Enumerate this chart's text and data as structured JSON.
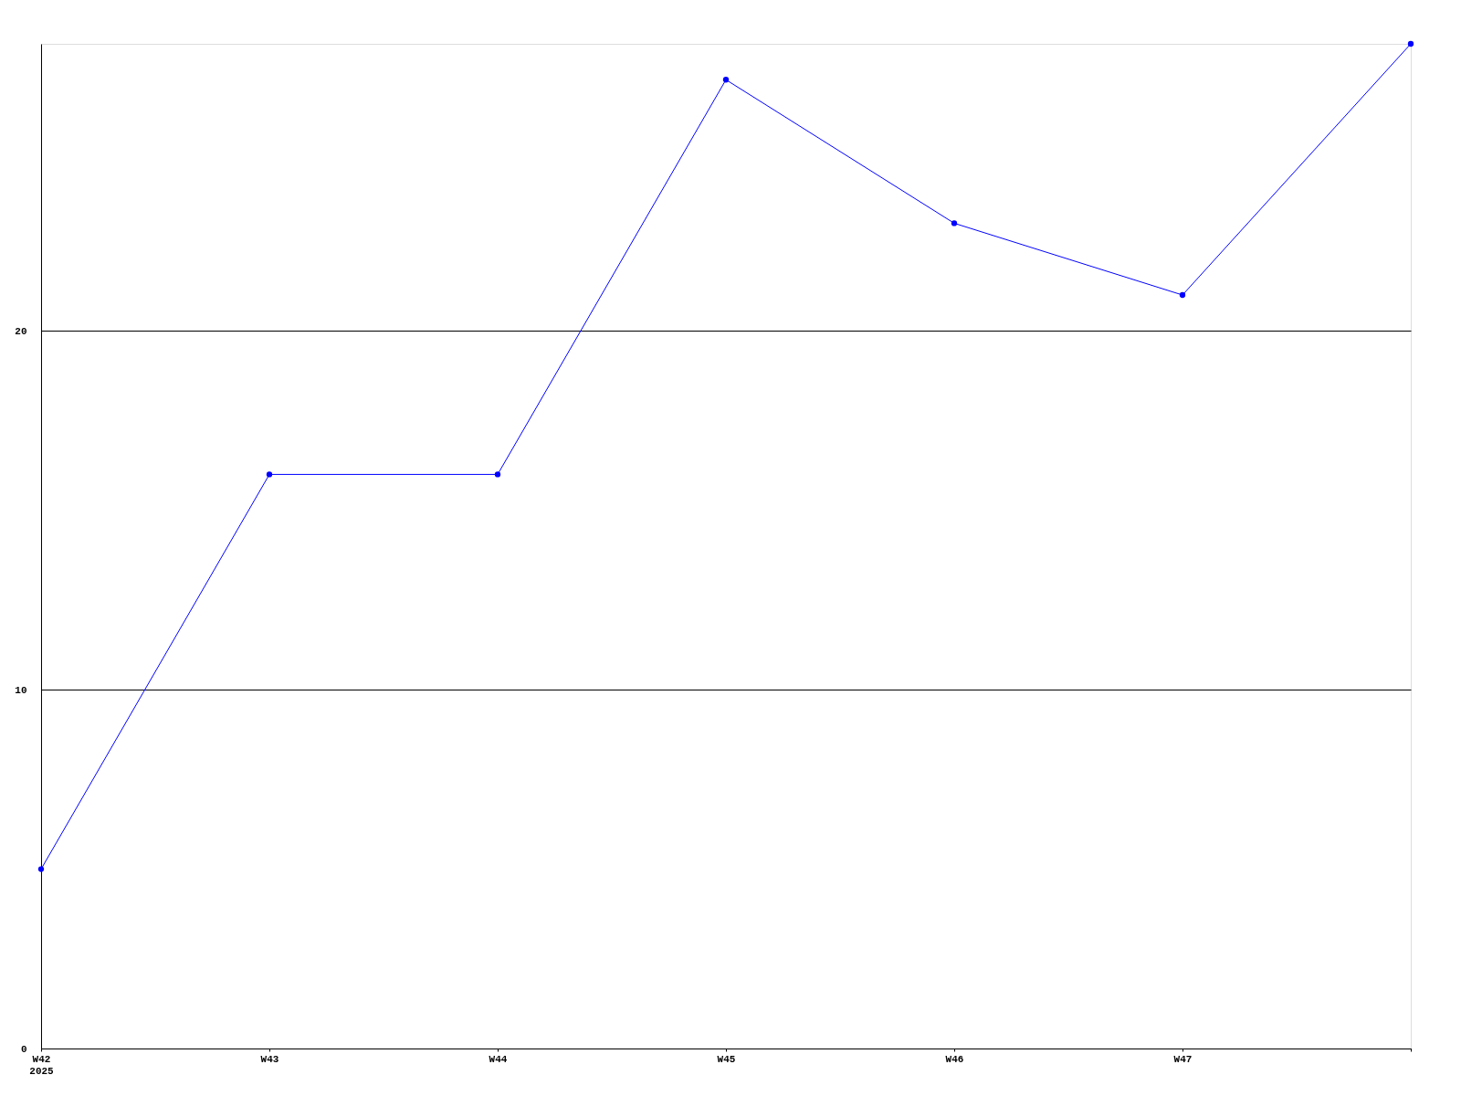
{
  "chart_data": {
    "type": "line",
    "categories": [
      "W42\n2025",
      "W43",
      "W44",
      "W45",
      "W46",
      "W47",
      null
    ],
    "series": [
      {
        "color": "#0000ff",
        "values": [
          5,
          16,
          16,
          27,
          23,
          21,
          28
        ]
      }
    ],
    "ylim": [
      0,
      28
    ],
    "yticks": [
      0,
      10,
      20
    ],
    "grid": "y",
    "marker": "circle",
    "line_style": "solid"
  }
}
